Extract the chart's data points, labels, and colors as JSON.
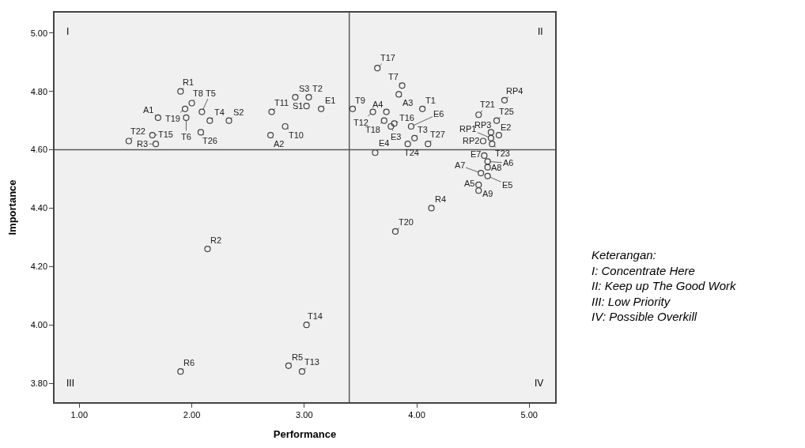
{
  "chart_data": {
    "type": "scatter",
    "xlabel": "Performance",
    "ylabel": "Importance",
    "marker": "circle",
    "grid": false,
    "xlim": [
      0.78,
      5.23
    ],
    "ylim": [
      3.735,
      5.07
    ],
    "xticks": [
      {
        "value": 1,
        "label": "1.00"
      },
      {
        "value": 2,
        "label": "2.00"
      },
      {
        "value": 3,
        "label": "3.00"
      },
      {
        "value": 4,
        "label": "4.00"
      },
      {
        "value": 5,
        "label": "5.00"
      }
    ],
    "yticks": [
      {
        "value": 3.8,
        "label": "3.80"
      },
      {
        "value": 4.0,
        "label": "4.00"
      },
      {
        "value": 4.2,
        "label": "4.20"
      },
      {
        "value": 4.4,
        "label": "4.40"
      },
      {
        "value": 4.6,
        "label": "4.60"
      },
      {
        "value": 4.8,
        "label": "4.80"
      },
      {
        "value": 5.0,
        "label": "5.00"
      }
    ],
    "ref_lines": [
      {
        "axis": "x",
        "value": 3.4,
        "color": "#595959"
      },
      {
        "axis": "y",
        "value": 4.6,
        "color": "#595959"
      }
    ],
    "series": [
      {
        "color": "#404040",
        "x": [
          1.9,
          2.0,
          2.09,
          1.94,
          1.95,
          1.7,
          2.16,
          2.33,
          1.44,
          1.65,
          1.68,
          2.08,
          2.71,
          2.7,
          2.83,
          2.92,
          3.04,
          3.02,
          3.15,
          3.65,
          3.87,
          3.84,
          3.43,
          3.61,
          3.73,
          4.05,
          3.71,
          3.8,
          3.77,
          3.95,
          3.98,
          3.92,
          4.1,
          3.63,
          4.78,
          4.55,
          4.71,
          4.66,
          4.73,
          4.66,
          4.59,
          4.67,
          4.6,
          4.63,
          4.63,
          4.57,
          4.63,
          4.55,
          4.55,
          4.13,
          3.81,
          2.14,
          3.02,
          1.9,
          2.86,
          2.98
        ],
        "values": [
          4.8,
          4.76,
          4.73,
          4.74,
          4.71,
          4.71,
          4.7,
          4.7,
          4.63,
          4.65,
          4.62,
          4.66,
          4.73,
          4.65,
          4.68,
          4.78,
          4.78,
          4.75,
          4.74,
          4.88,
          4.82,
          4.79,
          4.74,
          4.73,
          4.73,
          4.74,
          4.7,
          4.69,
          4.68,
          4.68,
          4.64,
          4.62,
          4.62,
          4.59,
          4.77,
          4.72,
          4.7,
          4.66,
          4.65,
          4.64,
          4.63,
          4.62,
          4.58,
          4.56,
          4.54,
          4.52,
          4.51,
          4.48,
          4.46,
          4.4,
          4.32,
          4.26,
          4.0,
          3.84,
          3.86,
          3.84
        ]
      }
    ],
    "annotations": [
      "I",
      "II",
      "III",
      "IV",
      "Keterangan:\nI: Concentrate Here\nII: Keep up The Good Work\nIII: Low Priority\nIV: Possible Overkill",
      {
        "text": "R1",
        "x": 1.9,
        "y": 4.8
      },
      {
        "text": "T8",
        "x": 2.0,
        "y": 4.76
      },
      {
        "text": "T5",
        "x": 2.09,
        "y": 4.73
      },
      {
        "text": "T19",
        "x": 1.94,
        "y": 4.74
      },
      {
        "text": "T6",
        "x": 1.95,
        "y": 4.71
      },
      {
        "text": "A1",
        "x": 1.7,
        "y": 4.71
      },
      {
        "text": "T4",
        "x": 2.16,
        "y": 4.7
      },
      {
        "text": "S2",
        "x": 2.33,
        "y": 4.7
      },
      {
        "text": "T22",
        "x": 1.44,
        "y": 4.63
      },
      {
        "text": "T15",
        "x": 1.65,
        "y": 4.65
      },
      {
        "text": "R3",
        "x": 1.68,
        "y": 4.62
      },
      {
        "text": "T26",
        "x": 2.08,
        "y": 4.66
      },
      {
        "text": "T11",
        "x": 2.71,
        "y": 4.73
      },
      {
        "text": "A2",
        "x": 2.7,
        "y": 4.65
      },
      {
        "text": "T10",
        "x": 2.83,
        "y": 4.68
      },
      {
        "text": "S3",
        "x": 2.92,
        "y": 4.78
      },
      {
        "text": "T2",
        "x": 3.04,
        "y": 4.78
      },
      {
        "text": "S1",
        "x": 3.02,
        "y": 4.75
      },
      {
        "text": "E1",
        "x": 3.15,
        "y": 4.74
      },
      {
        "text": "T17",
        "x": 3.65,
        "y": 4.88
      },
      {
        "text": "T7",
        "x": 3.87,
        "y": 4.82
      },
      {
        "text": "A3",
        "x": 3.84,
        "y": 4.79
      },
      {
        "text": "T9",
        "x": 3.43,
        "y": 4.74
      },
      {
        "text": "T12",
        "x": 3.61,
        "y": 4.73
      },
      {
        "text": "A4",
        "x": 3.73,
        "y": 4.73
      },
      {
        "text": "T1",
        "x": 4.05,
        "y": 4.74
      },
      {
        "text": "T18",
        "x": 3.71,
        "y": 4.7
      },
      {
        "text": "T16",
        "x": 3.8,
        "y": 4.69
      },
      {
        "text": "E3",
        "x": 3.77,
        "y": 4.68
      },
      {
        "text": "E6",
        "x": 3.95,
        "y": 4.68
      },
      {
        "text": "T3",
        "x": 3.98,
        "y": 4.64
      },
      {
        "text": "T24",
        "x": 3.92,
        "y": 4.62
      },
      {
        "text": "T27",
        "x": 4.1,
        "y": 4.62
      },
      {
        "text": "E4",
        "x": 3.63,
        "y": 4.59
      },
      {
        "text": "RP4",
        "x": 4.78,
        "y": 4.77
      },
      {
        "text": "T21",
        "x": 4.55,
        "y": 4.72
      },
      {
        "text": "T25",
        "x": 4.71,
        "y": 4.7
      },
      {
        "text": "RP3",
        "x": 4.66,
        "y": 4.66
      },
      {
        "text": "E2",
        "x": 4.73,
        "y": 4.65
      },
      {
        "text": "RP1",
        "x": 4.66,
        "y": 4.64
      },
      {
        "text": "RP2",
        "x": 4.59,
        "y": 4.63
      },
      {
        "text": "T23",
        "x": 4.67,
        "y": 4.62
      },
      {
        "text": "E7",
        "x": 4.6,
        "y": 4.58
      },
      {
        "text": "A6",
        "x": 4.63,
        "y": 4.56
      },
      {
        "text": "A8",
        "x": 4.63,
        "y": 4.54
      },
      {
        "text": "A7",
        "x": 4.57,
        "y": 4.52
      },
      {
        "text": "E5",
        "x": 4.63,
        "y": 4.51
      },
      {
        "text": "A5",
        "x": 4.55,
        "y": 4.48
      },
      {
        "text": "A9",
        "x": 4.55,
        "y": 4.46
      },
      {
        "text": "R4",
        "x": 4.13,
        "y": 4.4
      },
      {
        "text": "T20",
        "x": 3.81,
        "y": 4.32
      },
      {
        "text": "R2",
        "x": 2.14,
        "y": 4.26
      },
      {
        "text": "T14",
        "x": 3.02,
        "y": 4.0
      },
      {
        "text": "R6",
        "x": 1.9,
        "y": 3.84
      },
      {
        "text": "R5",
        "x": 2.86,
        "y": 3.86
      },
      {
        "text": "T13",
        "x": 2.98,
        "y": 3.84
      }
    ]
  }
}
